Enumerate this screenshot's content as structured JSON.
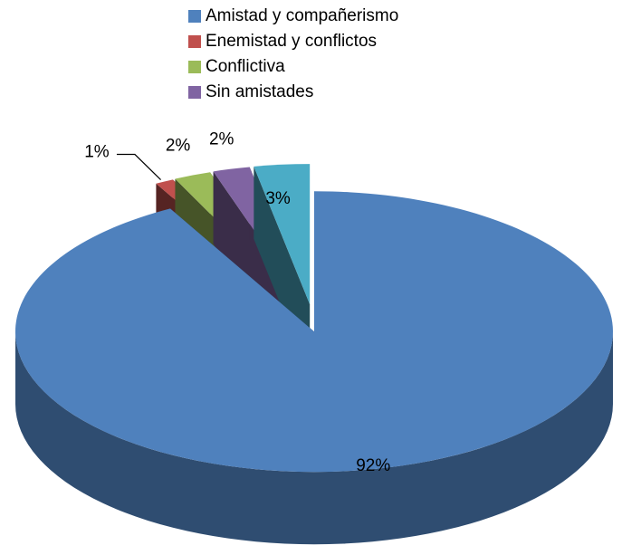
{
  "chart_data": {
    "type": "pie3d",
    "categories": [
      "Amistad y compañerismo",
      "Enemistad y conflictos",
      "Conflictiva",
      "Sin amistades",
      null
    ],
    "values": [
      92,
      1,
      2,
      2,
      3
    ],
    "value_labels": [
      "92%",
      "1%",
      "2%",
      "2%",
      "3%"
    ],
    "colors": [
      "#4f81bd",
      "#c0504d",
      "#9bbb59",
      "#8064a2",
      "#4bacc6"
    ],
    "legend": "top"
  }
}
